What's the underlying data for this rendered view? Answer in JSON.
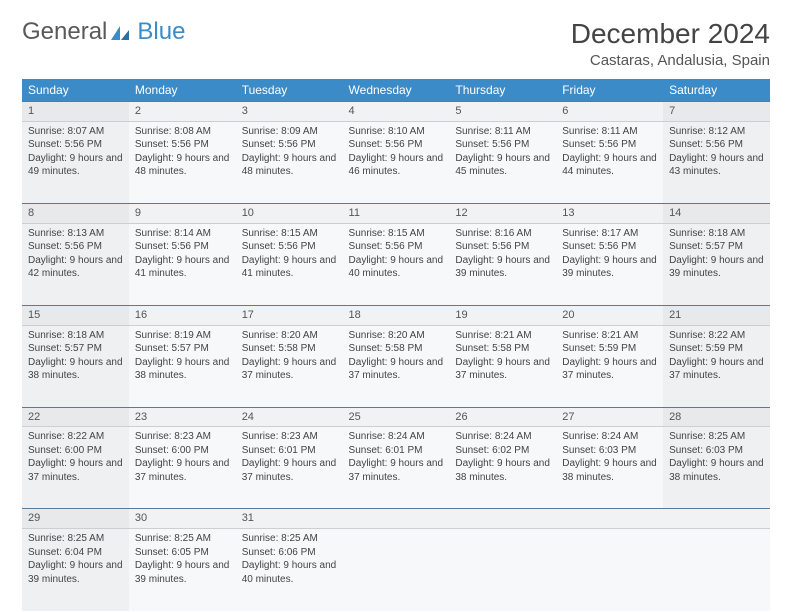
{
  "logo": {
    "part1": "General",
    "part2": "Blue"
  },
  "title": "December 2024",
  "location": "Castaras, Andalusia, Spain",
  "colors": {
    "header_bg": "#3b8bc9",
    "header_text": "#ffffff",
    "weekend_bg": "#eef0f1",
    "weekday_bg": "#f7f8f9",
    "rule": "#5b7a9a",
    "text": "#444444"
  },
  "day_names": [
    "Sunday",
    "Monday",
    "Tuesday",
    "Wednesday",
    "Thursday",
    "Friday",
    "Saturday"
  ],
  "weeks": [
    [
      {
        "n": "1",
        "sr": "8:07 AM",
        "ss": "5:56 PM",
        "dl": "9 hours and 49 minutes."
      },
      {
        "n": "2",
        "sr": "8:08 AM",
        "ss": "5:56 PM",
        "dl": "9 hours and 48 minutes."
      },
      {
        "n": "3",
        "sr": "8:09 AM",
        "ss": "5:56 PM",
        "dl": "9 hours and 48 minutes."
      },
      {
        "n": "4",
        "sr": "8:10 AM",
        "ss": "5:56 PM",
        "dl": "9 hours and 46 minutes."
      },
      {
        "n": "5",
        "sr": "8:11 AM",
        "ss": "5:56 PM",
        "dl": "9 hours and 45 minutes."
      },
      {
        "n": "6",
        "sr": "8:11 AM",
        "ss": "5:56 PM",
        "dl": "9 hours and 44 minutes."
      },
      {
        "n": "7",
        "sr": "8:12 AM",
        "ss": "5:56 PM",
        "dl": "9 hours and 43 minutes."
      }
    ],
    [
      {
        "n": "8",
        "sr": "8:13 AM",
        "ss": "5:56 PM",
        "dl": "9 hours and 42 minutes."
      },
      {
        "n": "9",
        "sr": "8:14 AM",
        "ss": "5:56 PM",
        "dl": "9 hours and 41 minutes."
      },
      {
        "n": "10",
        "sr": "8:15 AM",
        "ss": "5:56 PM",
        "dl": "9 hours and 41 minutes."
      },
      {
        "n": "11",
        "sr": "8:15 AM",
        "ss": "5:56 PM",
        "dl": "9 hours and 40 minutes."
      },
      {
        "n": "12",
        "sr": "8:16 AM",
        "ss": "5:56 PM",
        "dl": "9 hours and 39 minutes."
      },
      {
        "n": "13",
        "sr": "8:17 AM",
        "ss": "5:56 PM",
        "dl": "9 hours and 39 minutes."
      },
      {
        "n": "14",
        "sr": "8:18 AM",
        "ss": "5:57 PM",
        "dl": "9 hours and 39 minutes."
      }
    ],
    [
      {
        "n": "15",
        "sr": "8:18 AM",
        "ss": "5:57 PM",
        "dl": "9 hours and 38 minutes."
      },
      {
        "n": "16",
        "sr": "8:19 AM",
        "ss": "5:57 PM",
        "dl": "9 hours and 38 minutes."
      },
      {
        "n": "17",
        "sr": "8:20 AM",
        "ss": "5:58 PM",
        "dl": "9 hours and 37 minutes."
      },
      {
        "n": "18",
        "sr": "8:20 AM",
        "ss": "5:58 PM",
        "dl": "9 hours and 37 minutes."
      },
      {
        "n": "19",
        "sr": "8:21 AM",
        "ss": "5:58 PM",
        "dl": "9 hours and 37 minutes."
      },
      {
        "n": "20",
        "sr": "8:21 AM",
        "ss": "5:59 PM",
        "dl": "9 hours and 37 minutes."
      },
      {
        "n": "21",
        "sr": "8:22 AM",
        "ss": "5:59 PM",
        "dl": "9 hours and 37 minutes."
      }
    ],
    [
      {
        "n": "22",
        "sr": "8:22 AM",
        "ss": "6:00 PM",
        "dl": "9 hours and 37 minutes."
      },
      {
        "n": "23",
        "sr": "8:23 AM",
        "ss": "6:00 PM",
        "dl": "9 hours and 37 minutes."
      },
      {
        "n": "24",
        "sr": "8:23 AM",
        "ss": "6:01 PM",
        "dl": "9 hours and 37 minutes."
      },
      {
        "n": "25",
        "sr": "8:24 AM",
        "ss": "6:01 PM",
        "dl": "9 hours and 37 minutes."
      },
      {
        "n": "26",
        "sr": "8:24 AM",
        "ss": "6:02 PM",
        "dl": "9 hours and 38 minutes."
      },
      {
        "n": "27",
        "sr": "8:24 AM",
        "ss": "6:03 PM",
        "dl": "9 hours and 38 minutes."
      },
      {
        "n": "28",
        "sr": "8:25 AM",
        "ss": "6:03 PM",
        "dl": "9 hours and 38 minutes."
      }
    ],
    [
      {
        "n": "29",
        "sr": "8:25 AM",
        "ss": "6:04 PM",
        "dl": "9 hours and 39 minutes."
      },
      {
        "n": "30",
        "sr": "8:25 AM",
        "ss": "6:05 PM",
        "dl": "9 hours and 39 minutes."
      },
      {
        "n": "31",
        "sr": "8:25 AM",
        "ss": "6:06 PM",
        "dl": "9 hours and 40 minutes."
      },
      null,
      null,
      null,
      null
    ]
  ],
  "labels": {
    "sunrise": "Sunrise:",
    "sunset": "Sunset:",
    "daylight": "Daylight:"
  }
}
